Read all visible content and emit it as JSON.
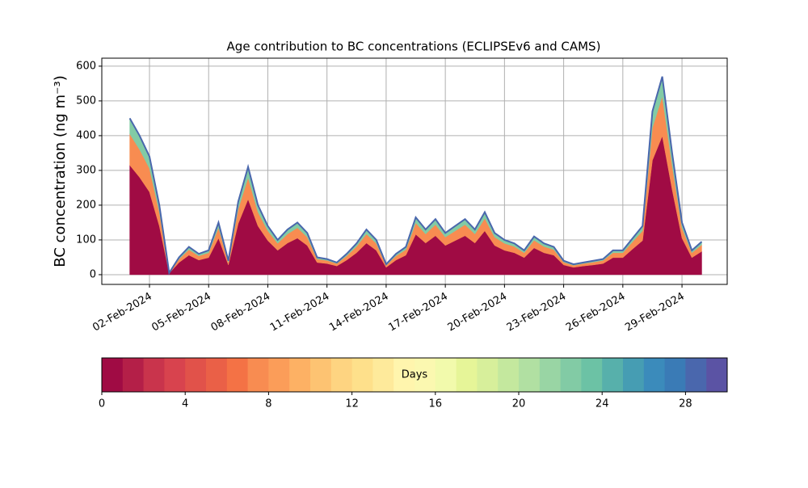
{
  "chart_data": {
    "type": "stackedarea",
    "title": "Age contribution to BC concentrations (ECLIPSEv6 and CAMS)",
    "y_label": "BC concentration (ng m⁻³)",
    "x": [
      "2024-02-01T00:00",
      "2024-02-01T12:00",
      "2024-02-02T00:00",
      "2024-02-02T12:00",
      "2024-02-03T00:00",
      "2024-02-03T12:00",
      "2024-02-04T00:00",
      "2024-02-04T12:00",
      "2024-02-05T00:00",
      "2024-02-05T12:00",
      "2024-02-06T00:00",
      "2024-02-06T12:00",
      "2024-02-07T00:00",
      "2024-02-07T12:00",
      "2024-02-08T00:00",
      "2024-02-08T12:00",
      "2024-02-09T00:00",
      "2024-02-09T12:00",
      "2024-02-10T00:00",
      "2024-02-10T12:00",
      "2024-02-11T00:00",
      "2024-02-11T12:00",
      "2024-02-12T00:00",
      "2024-02-12T12:00",
      "2024-02-13T00:00",
      "2024-02-13T12:00",
      "2024-02-14T00:00",
      "2024-02-14T12:00",
      "2024-02-15T00:00",
      "2024-02-15T12:00",
      "2024-02-16T00:00",
      "2024-02-16T12:00",
      "2024-02-17T00:00",
      "2024-02-17T12:00",
      "2024-02-18T00:00",
      "2024-02-18T12:00",
      "2024-02-19T00:00",
      "2024-02-19T12:00",
      "2024-02-20T00:00",
      "2024-02-20T12:00",
      "2024-02-21T00:00",
      "2024-02-21T12:00",
      "2024-02-22T00:00",
      "2024-02-22T12:00",
      "2024-02-23T00:00",
      "2024-02-23T12:00",
      "2024-02-24T00:00",
      "2024-02-24T12:00",
      "2024-02-25T00:00",
      "2024-02-25T12:00",
      "2024-02-26T00:00",
      "2024-02-26T12:00",
      "2024-02-27T00:00",
      "2024-02-27T12:00",
      "2024-02-28T00:00",
      "2024-02-28T12:00",
      "2024-02-29T00:00",
      "2024-02-29T12:00",
      "2024-03-01T00:00"
    ],
    "series": [
      {
        "color": "#a00b44",
        "values": [
          315,
          280,
          238,
          140,
          4,
          35,
          56,
          42,
          49,
          105,
          28,
          147,
          217,
          140,
          98,
          70,
          91,
          105,
          84,
          35,
          32,
          25,
          42,
          63,
          91,
          70,
          21,
          42,
          56,
          116,
          91,
          112,
          84,
          98,
          112,
          91,
          126,
          84,
          70,
          63,
          49,
          77,
          63,
          56,
          28,
          21,
          25,
          28,
          32,
          49,
          49,
          74,
          98,
          329,
          399,
          245,
          105,
          49,
          67
        ]
      },
      {
        "color": "#f88c51",
        "values": [
          90,
          80,
          68,
          40,
          1,
          10,
          16,
          12,
          14,
          30,
          8,
          42,
          62,
          40,
          28,
          20,
          26,
          30,
          24,
          10,
          9,
          7,
          12,
          18,
          26,
          20,
          6,
          12,
          16,
          33,
          26,
          32,
          24,
          28,
          32,
          26,
          36,
          24,
          20,
          18,
          14,
          22,
          18,
          16,
          8,
          6,
          7,
          8,
          9,
          14,
          14,
          21,
          28,
          94,
          114,
          70,
          30,
          14,
          19
        ]
      },
      {
        "color": "#82cba5",
        "values": [
          45,
          40,
          34,
          20,
          0,
          5,
          8,
          6,
          7,
          15,
          4,
          21,
          31,
          20,
          14,
          10,
          13,
          15,
          12,
          5,
          4,
          3,
          6,
          9,
          13,
          10,
          3,
          6,
          8,
          16,
          13,
          16,
          12,
          14,
          16,
          13,
          18,
          12,
          10,
          9,
          7,
          11,
          9,
          8,
          4,
          3,
          3,
          4,
          4,
          7,
          7,
          10,
          14,
          47,
          57,
          35,
          15,
          7,
          9
        ]
      }
    ],
    "outline_color": "#4a67ad",
    "xlim": [
      "2024-01-30T14:00",
      "2024-03-02T07:00"
    ],
    "xticks": [
      {
        "value": "2024-02-02T00:00",
        "label": "02-Feb-2024"
      },
      {
        "value": "2024-02-05T00:00",
        "label": "05-Feb-2024"
      },
      {
        "value": "2024-02-08T00:00",
        "label": "08-Feb-2024"
      },
      {
        "value": "2024-02-11T00:00",
        "label": "11-Feb-2024"
      },
      {
        "value": "2024-02-14T00:00",
        "label": "14-Feb-2024"
      },
      {
        "value": "2024-02-17T00:00",
        "label": "17-Feb-2024"
      },
      {
        "value": "2024-02-20T00:00",
        "label": "20-Feb-2024"
      },
      {
        "value": "2024-02-23T00:00",
        "label": "23-Feb-2024"
      },
      {
        "value": "2024-02-26T00:00",
        "label": "26-Feb-2024"
      },
      {
        "value": "2024-02-29T00:00",
        "label": "29-Feb-2024"
      }
    ],
    "ylim": [
      -28,
      623
    ],
    "yticks": [
      0,
      100,
      200,
      300,
      400,
      500,
      600
    ],
    "grid": true,
    "colorbar": {
      "label": "Days",
      "lim": [
        0,
        30
      ],
      "ticks": [
        0,
        4,
        8,
        12,
        16,
        20,
        24,
        28
      ],
      "colors": [
        "#a00b44",
        "#b41f48",
        "#c9344c",
        "#d8434e",
        "#e1524a",
        "#ea6047",
        "#f47245",
        "#f88c51",
        "#fb9d59",
        "#fdb164",
        "#fdc372",
        "#fed481",
        "#fee08b",
        "#feea9b",
        "#fff5ad",
        "#fbf8b0",
        "#f2faac",
        "#e6f598",
        "#d7ef9b",
        "#c4e89e",
        "#b1e0a2",
        "#99d5a4",
        "#82cba5",
        "#6cc2a5",
        "#57b0ab",
        "#469db3",
        "#3b8bbb",
        "#3a7bb6",
        "#4a67ad",
        "#5b53a4"
      ]
    }
  }
}
